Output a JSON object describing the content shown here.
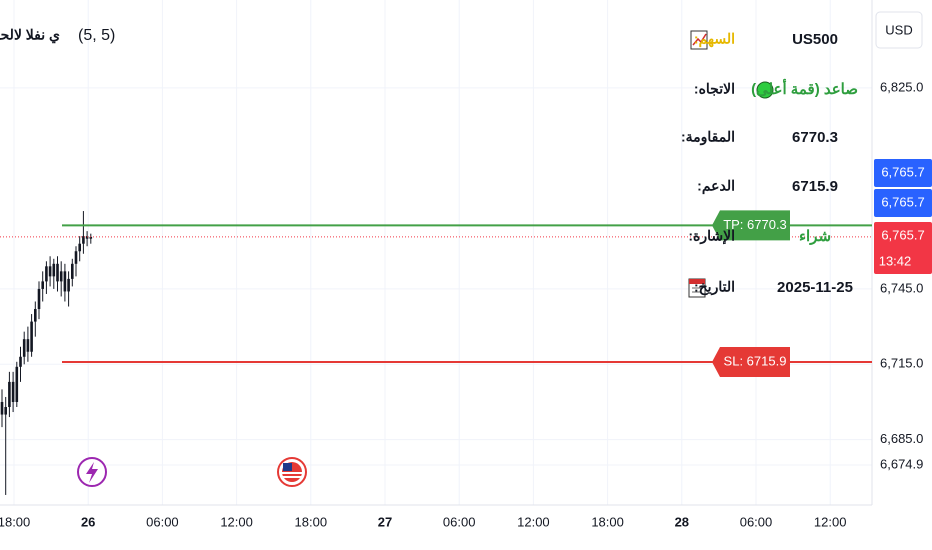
{
  "currency": "USD",
  "indicator": {
    "name": "ي نفلا لالحملا",
    "params": "(5, 5)"
  },
  "price_axis": {
    "ylim": [
      6659,
      6860
    ],
    "ticks": [
      {
        "value": 6825,
        "label": "6,825.0"
      },
      {
        "value": 6745,
        "label": "6,745.0"
      },
      {
        "value": 6715,
        "label": "6,715.0"
      },
      {
        "value": 6685,
        "label": "6,685.0"
      },
      {
        "value": 6674.9,
        "label": "6,674.9"
      }
    ]
  },
  "time_axis": {
    "ticks": [
      "18:00",
      "26",
      "06:00",
      "12:00",
      "18:00",
      "27",
      "06:00",
      "12:00",
      "18:00",
      "28",
      "06:00",
      "12:00"
    ]
  },
  "price_tags": [
    {
      "value": 6765.7,
      "label": "6,765.7",
      "color": "#2962ff"
    },
    {
      "value": 6765.7,
      "label": "6,765.7",
      "color": "#2962ff"
    },
    {
      "value": 6765.7,
      "label": "6,765.7",
      "countdown": "13:42",
      "color": "#f23645"
    }
  ],
  "levels": [
    {
      "value": 6770.3,
      "label": "TP: 6770.3",
      "color": "#43a047"
    },
    {
      "value": 6715.9,
      "label": "SL: 6715.9",
      "color": "#e53935"
    }
  ],
  "table": {
    "rows": [
      [
        "السهم:",
        "US500"
      ],
      [
        "الاتجاه:",
        "صاعد (قمة أعلى)"
      ],
      [
        "المقاومة:",
        "6770.3"
      ],
      [
        "الدعم:",
        "6715.9"
      ],
      [
        "الإشارة:",
        "شراء"
      ],
      [
        "التاريخ:",
        "2025-11-25"
      ]
    ]
  },
  "candles": {
    "color": "#131722",
    "ohlc": [
      [
        6700,
        6705,
        6690,
        6695
      ],
      [
        6695,
        6702,
        6663,
        6698
      ],
      [
        6698,
        6712,
        6694,
        6708
      ],
      [
        6708,
        6712,
        6696,
        6700
      ],
      [
        6700,
        6716,
        6698,
        6714
      ],
      [
        6714,
        6722,
        6708,
        6718
      ],
      [
        6718,
        6728,
        6715,
        6725
      ],
      [
        6725,
        6730,
        6716,
        6720
      ],
      [
        6720,
        6735,
        6718,
        6732
      ],
      [
        6732,
        6740,
        6726,
        6737
      ],
      [
        6737,
        6748,
        6733,
        6745
      ],
      [
        6745,
        6752,
        6740,
        6748
      ],
      [
        6748,
        6756,
        6743,
        6754
      ],
      [
        6754,
        6758,
        6746,
        6750
      ],
      [
        6750,
        6757,
        6745,
        6755
      ],
      [
        6755,
        6758,
        6744,
        6748
      ],
      [
        6748,
        6756,
        6742,
        6752
      ],
      [
        6752,
        6755,
        6740,
        6744
      ],
      [
        6744,
        6752,
        6738,
        6749
      ],
      [
        6749,
        6757,
        6746,
        6755
      ],
      [
        6755,
        6762,
        6750,
        6760
      ],
      [
        6760,
        6766,
        6756,
        6763
      ],
      [
        6763,
        6776,
        6759,
        6766
      ],
      [
        6766,
        6768,
        6762,
        6765
      ],
      [
        6765,
        6767,
        6763,
        6765.7
      ]
    ]
  }
}
